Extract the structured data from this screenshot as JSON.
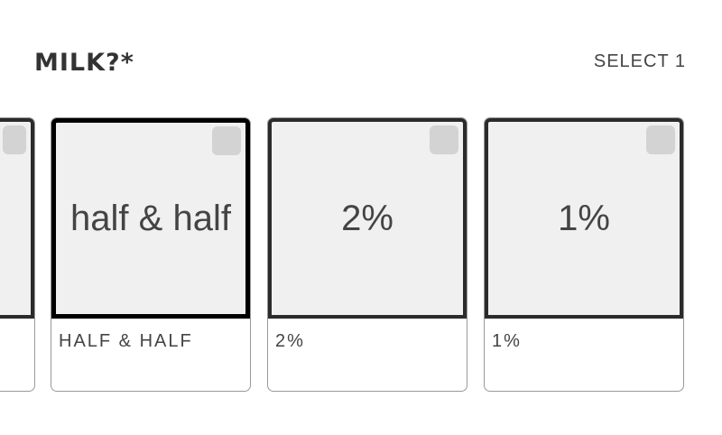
{
  "header": {
    "title": "MILK?*",
    "select_hint": "SELECT 1"
  },
  "options": [
    {
      "image_text": "",
      "label": "",
      "selected": false
    },
    {
      "image_text": "half & half",
      "label": "HALF & HALF",
      "selected": true
    },
    {
      "image_text": "2%",
      "label": "2%",
      "selected": false
    },
    {
      "image_text": "1%",
      "label": "1%",
      "selected": false
    }
  ]
}
